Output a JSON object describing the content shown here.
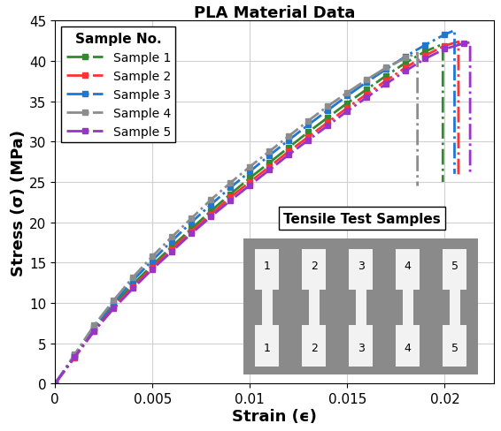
{
  "chart_data": {
    "type": "line",
    "title": "PLA Material Data",
    "x_label": "Strain (ϵ)",
    "y_label": "Stress (σ) (MPa)",
    "legend_title": "Sample No.",
    "legend": "upper left",
    "annotations": [
      "Tensile Test Samples"
    ],
    "inset_labels": [
      "1",
      "2",
      "3",
      "4",
      "5"
    ],
    "xlim": [
      0,
      0.0225
    ],
    "xticks": [
      0,
      0.005,
      0.01,
      0.015,
      0.02
    ],
    "ylim": [
      0,
      45
    ],
    "yticks": [
      0,
      5,
      10,
      15,
      20,
      25,
      30,
      35,
      40,
      45
    ],
    "grid": true,
    "marker": "square",
    "line_style": "dashdot",
    "series": [
      {
        "name": "Sample 1",
        "color": "#2e8b2e",
        "x": [
          0,
          0.001,
          0.002,
          0.003,
          0.004,
          0.005,
          0.006,
          0.007,
          0.008,
          0.009,
          0.01,
          0.011,
          0.012,
          0.013,
          0.014,
          0.015,
          0.016,
          0.017,
          0.018,
          0.019,
          0.0199,
          0.0199
        ],
        "values": [
          0,
          3.4,
          6.8,
          9.7,
          12.3,
          14.7,
          17.0,
          19.2,
          21.4,
          23.5,
          25.5,
          27.4,
          29.3,
          31.2,
          33.0,
          34.8,
          36.5,
          38.2,
          39.8,
          41.2,
          42.1,
          25.0
        ]
      },
      {
        "name": "Sample 2",
        "color": "#ff3333",
        "x": [
          0,
          0.001,
          0.002,
          0.003,
          0.004,
          0.005,
          0.006,
          0.007,
          0.008,
          0.009,
          0.01,
          0.011,
          0.012,
          0.013,
          0.014,
          0.015,
          0.016,
          0.017,
          0.018,
          0.019,
          0.02,
          0.0207,
          0.0207
        ],
        "values": [
          0,
          3.2,
          6.5,
          9.4,
          12.0,
          14.4,
          16.7,
          18.9,
          21.0,
          23.1,
          25.0,
          26.9,
          28.8,
          30.6,
          32.4,
          34.2,
          35.9,
          37.6,
          39.2,
          40.7,
          41.9,
          42.4,
          25.5
        ]
      },
      {
        "name": "Sample 3",
        "color": "#1f77d4",
        "x": [
          0,
          0.001,
          0.002,
          0.003,
          0.004,
          0.005,
          0.006,
          0.007,
          0.008,
          0.009,
          0.01,
          0.011,
          0.012,
          0.013,
          0.014,
          0.015,
          0.016,
          0.017,
          0.018,
          0.019,
          0.02,
          0.0205,
          0.0205
        ],
        "values": [
          0,
          3.5,
          7.0,
          10.0,
          12.8,
          15.3,
          17.7,
          20.0,
          22.2,
          24.3,
          26.3,
          28.3,
          30.2,
          32.1,
          33.9,
          35.7,
          37.4,
          39.0,
          40.6,
          42.0,
          43.3,
          43.8,
          26.0
        ]
      },
      {
        "name": "Sample 4",
        "color": "#8c8c8c",
        "x": [
          0,
          0.001,
          0.002,
          0.003,
          0.004,
          0.005,
          0.006,
          0.007,
          0.008,
          0.009,
          0.01,
          0.011,
          0.012,
          0.013,
          0.014,
          0.015,
          0.016,
          0.017,
          0.018,
          0.0186,
          0.0186
        ],
        "values": [
          0,
          3.6,
          7.2,
          10.3,
          13.2,
          15.8,
          18.2,
          20.5,
          22.8,
          24.9,
          26.9,
          28.8,
          30.7,
          32.6,
          34.4,
          36.1,
          37.7,
          39.2,
          40.4,
          41.0,
          24.5
        ]
      },
      {
        "name": "Sample 5",
        "color": "#9933cc",
        "x": [
          0,
          0.001,
          0.002,
          0.003,
          0.004,
          0.005,
          0.006,
          0.007,
          0.008,
          0.009,
          0.01,
          0.011,
          0.012,
          0.013,
          0.014,
          0.015,
          0.016,
          0.017,
          0.018,
          0.019,
          0.02,
          0.021,
          0.0213,
          0.0213
        ],
        "values": [
          0,
          3.3,
          6.5,
          9.3,
          11.8,
          14.2,
          16.4,
          18.6,
          20.7,
          22.7,
          24.6,
          26.5,
          28.4,
          30.2,
          32.0,
          33.8,
          35.5,
          37.2,
          38.8,
          40.3,
          41.5,
          42.2,
          42.3,
          26.0
        ]
      }
    ]
  }
}
